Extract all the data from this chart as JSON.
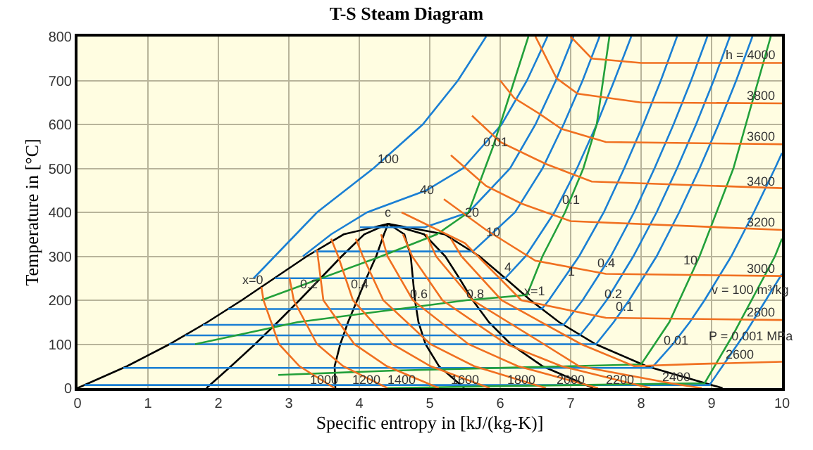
{
  "chart_data": {
    "type": "line",
    "title": "T-S Steam Diagram",
    "xlabel": "Specific entropy in [kJ/(kg-K)]",
    "ylabel": "Temperature in [°C]",
    "xlim": [
      0,
      10
    ],
    "ylim": [
      0,
      800
    ],
    "xticks": [
      0,
      1,
      2,
      3,
      4,
      5,
      6,
      7,
      8,
      9,
      10
    ],
    "yticks": [
      0,
      100,
      200,
      300,
      400,
      500,
      600,
      700,
      800
    ],
    "grid": true,
    "marker": "none",
    "line_style": "solid",
    "series": [
      {
        "color": "#000000",
        "x": [
          0,
          0.704,
          1.307,
          1.842,
          2.331,
          2.793,
          3.255,
          3.778,
          4.41,
          5.211,
          5.706,
          6.072,
          6.431,
          6.838,
          7.355,
          8.076,
          9.156
        ],
        "values": [
          0,
          50,
          100,
          150,
          200,
          250,
          300,
          350,
          374,
          350,
          300,
          250,
          200,
          150,
          100,
          50,
          0
        ]
      },
      {
        "color": "#000000",
        "x": [
          1.83,
          2.18,
          2.52,
          2.84,
          3.15,
          3.45,
          3.75,
          4.07,
          4.41
        ],
        "values": [
          0,
          50,
          100,
          150,
          200,
          250,
          300,
          350,
          374
        ]
      },
      {
        "color": "#000000",
        "x": [
          3.66,
          3.65,
          3.73,
          3.84,
          3.97,
          4.1,
          4.24,
          4.35,
          4.41
        ],
        "values": [
          0,
          50,
          100,
          150,
          200,
          250,
          300,
          350,
          374
        ]
      },
      {
        "color": "#000000",
        "x": [
          5.49,
          5.13,
          4.94,
          4.84,
          4.79,
          4.76,
          4.73,
          4.64,
          4.41
        ],
        "values": [
          0,
          50,
          100,
          150,
          200,
          250,
          300,
          350,
          374
        ]
      },
      {
        "color": "#000000",
        "x": [
          7.32,
          6.6,
          6.15,
          5.84,
          5.61,
          5.42,
          5.22,
          4.92,
          4.41
        ],
        "values": [
          0,
          50,
          100,
          150,
          200,
          250,
          300,
          350,
          374
        ]
      },
      {
        "color": "#1a7fd4",
        "x": [
          0.1,
          8.97,
          9.5,
          10
        ],
        "values": [
          7,
          7,
          130,
          260
        ]
      },
      {
        "color": "#1a7fd4",
        "x": [
          0.65,
          8.15,
          8.45,
          8.69,
          8.9,
          9.28,
          9.6,
          9.9,
          10
        ],
        "values": [
          46,
          46,
          100,
          150,
          200,
          300,
          400,
          500,
          535
        ]
      },
      {
        "color": "#1a7fd4",
        "x": [
          1.3,
          7.36,
          7.61,
          7.83,
          8.22,
          8.54,
          8.83,
          9.1,
          9.35,
          9.58
        ],
        "values": [
          100,
          100,
          150,
          200,
          300,
          400,
          500,
          600,
          700,
          800
        ]
      },
      {
        "color": "#1a7fd4",
        "x": [
          1.53,
          7.13,
          7.28,
          7.51,
          7.89,
          8.22,
          8.51,
          8.78,
          9.03,
          9.26
        ],
        "values": [
          120,
          120,
          150,
          200,
          300,
          400,
          500,
          600,
          700,
          800
        ]
      },
      {
        "color": "#1a7fd4",
        "x": [
          1.78,
          6.9,
          6.93,
          7.17,
          7.57,
          7.9,
          8.19,
          8.46,
          8.71,
          8.94
        ],
        "values": [
          144,
          144,
          150,
          200,
          300,
          400,
          500,
          600,
          700,
          800
        ]
      },
      {
        "color": "#1a7fd4",
        "x": [
          2.14,
          6.59,
          6.69,
          7.12,
          7.47,
          7.76,
          8.03,
          8.28,
          8.51
        ],
        "values": [
          180,
          180,
          200,
          300,
          400,
          500,
          600,
          700,
          800
        ]
      },
      {
        "color": "#1a7fd4",
        "x": [
          2.8,
          6.07,
          6.36,
          6.77,
          7.09,
          7.37,
          7.62,
          7.86
        ],
        "values": [
          250,
          250,
          300,
          400,
          500,
          600,
          700,
          800
        ]
      },
      {
        "color": "#1a7fd4",
        "x": [
          3.36,
          5.61,
          6.21,
          6.6,
          6.9,
          7.17,
          7.41
        ],
        "values": [
          311,
          311,
          400,
          500,
          600,
          700,
          800
        ]
      },
      {
        "color": "#1a7fd4",
        "x": [
          4.01,
          4.93,
          5.55,
          6.14,
          6.5,
          6.79,
          7.04
        ],
        "values": [
          366,
          366,
          400,
          500,
          600,
          700,
          800
        ]
      },
      {
        "color": "#1a7fd4",
        "x": [
          3.2,
          3.6,
          4.11,
          4.95,
          5.47,
          6.02,
          6.38,
          6.67
        ],
        "values": [
          300,
          350,
          400,
          450,
          500,
          600,
          700,
          800
        ]
      },
      {
        "color": "#1a7fd4",
        "x": [
          2.5,
          3.4,
          4.2,
          4.9,
          5.4,
          5.8
        ],
        "values": [
          250,
          400,
          500,
          600,
          700,
          800
        ]
      },
      {
        "color": "#22a03a",
        "x": [
          2.61,
          4.31,
          5.1,
          5.55,
          5.9,
          6.2,
          6.4
        ],
        "values": [
          200,
          300,
          350,
          400,
          550,
          700,
          800
        ]
      },
      {
        "color": "#22a03a",
        "x": [
          1.67,
          3.12,
          5.52,
          6.38,
          6.6,
          6.92,
          7.18,
          7.37,
          7.55
        ],
        "values": [
          100,
          150,
          200,
          212,
          300,
          400,
          500,
          600,
          800
        ]
      },
      {
        "color": "#22a03a",
        "x": [
          2.85,
          4.5,
          8.0,
          8.4,
          8.83,
          9.31,
          9.84
        ],
        "values": [
          30,
          40,
          54,
          150,
          300,
          500,
          800
        ]
      },
      {
        "color": "#22a03a",
        "x": [
          4.4,
          6.16,
          8.9,
          9.3,
          9.9,
          10
        ],
        "values": [
          0,
          5,
          11,
          120,
          300,
          340
        ]
      },
      {
        "color": "#f07020",
        "x": [
          7.0,
          7.3,
          8,
          10
        ],
        "values": [
          800,
          750,
          740,
          740
        ]
      },
      {
        "color": "#f07020",
        "x": [
          6.5,
          6.8,
          7.1,
          8,
          10
        ],
        "values": [
          800,
          705,
          670,
          650,
          648
        ]
      },
      {
        "color": "#f07020",
        "x": [
          6.0,
          6.2,
          6.55,
          6.87,
          7.5,
          10
        ],
        "values": [
          700,
          660,
          625,
          590,
          560,
          555
        ]
      },
      {
        "color": "#f07020",
        "x": [
          5.6,
          6.0,
          6.65,
          7.3,
          10
        ],
        "values": [
          620,
          560,
          510,
          470,
          455
        ]
      },
      {
        "color": "#f07020",
        "x": [
          5.3,
          5.8,
          6.3,
          7,
          10
        ],
        "values": [
          530,
          460,
          420,
          380,
          360
        ]
      },
      {
        "color": "#f07020",
        "x": [
          5.2,
          5.8,
          6.5,
          7.5,
          10
        ],
        "values": [
          430,
          360,
          290,
          260,
          255
        ]
      },
      {
        "color": "#f07020",
        "x": [
          4.6,
          5.5,
          6.3,
          7.5,
          10
        ],
        "values": [
          400,
          330,
          200,
          160,
          155
        ]
      },
      {
        "color": "#f07020",
        "x": [
          5.3,
          5.45,
          6.02,
          7.15,
          7.9,
          8.8,
          10
        ],
        "values": [
          340,
          300,
          200,
          100,
          50,
          55,
          60
        ]
      },
      {
        "color": "#f07020",
        "x": [
          4.95,
          5.09,
          5.61,
          6.62,
          7.12,
          8.46,
          8.86
        ],
        "values": [
          350,
          300,
          200,
          100,
          50,
          10,
          0
        ]
      },
      {
        "color": "#f07020",
        "x": [
          4.62,
          4.75,
          5.18,
          6.09,
          6.87,
          8.13
        ],
        "values": [
          350,
          300,
          200,
          100,
          50,
          0
        ]
      },
      {
        "color": "#f07020",
        "x": [
          4.31,
          4.4,
          4.76,
          5.55,
          6.25,
          7.39
        ],
        "values": [
          350,
          300,
          200,
          100,
          50,
          0
        ]
      },
      {
        "color": "#f07020",
        "x": [
          3.95,
          4.05,
          4.34,
          5.01,
          5.63,
          6.65
        ],
        "values": [
          340,
          300,
          200,
          100,
          50,
          0
        ]
      },
      {
        "color": "#f07020",
        "x": [
          3.6,
          3.7,
          3.91,
          4.47,
          5.01,
          5.85
        ],
        "values": [
          340,
          300,
          200,
          100,
          50,
          0
        ]
      },
      {
        "color": "#f07020",
        "x": [
          3.4,
          3.49,
          3.93,
          4.39,
          5.13
        ],
        "values": [
          315,
          200,
          100,
          50,
          0
        ]
      },
      {
        "color": "#f07020",
        "x": [
          3.01,
          3.07,
          3.4,
          3.77,
          4.4
        ],
        "values": [
          250,
          200,
          100,
          50,
          0
        ]
      },
      {
        "color": "#f07020",
        "x": [
          2.61,
          2.64,
          2.86,
          3.15,
          3.65
        ],
        "values": [
          230,
          200,
          100,
          50,
          0
        ]
      }
    ],
    "annotations": [
      {
        "text": "c",
        "x": 4.41,
        "y": 400
      },
      {
        "text": "x=0",
        "x": 2.48,
        "y": 248
      },
      {
        "text": "0.2",
        "x": 3.28,
        "y": 238
      },
      {
        "text": "0.4",
        "x": 4.0,
        "y": 238
      },
      {
        "text": "0.6",
        "x": 4.84,
        "y": 216
      },
      {
        "text": "0.8",
        "x": 5.64,
        "y": 216
      },
      {
        "text": "x=1",
        "x": 6.48,
        "y": 222
      },
      {
        "text": "100",
        "x": 4.4,
        "y": 523
      },
      {
        "text": "40",
        "x": 4.95,
        "y": 450
      },
      {
        "text": "20",
        "x": 5.6,
        "y": 400
      },
      {
        "text": "10",
        "x": 5.9,
        "y": 355
      },
      {
        "text": "4",
        "x": 6.1,
        "y": 275
      },
      {
        "text": "1",
        "x": 7.0,
        "y": 265
      },
      {
        "text": "0.4",
        "x": 7.5,
        "y": 285
      },
      {
        "text": "0.2",
        "x": 7.6,
        "y": 215
      },
      {
        "text": "0.1",
        "x": 7.76,
        "y": 185
      },
      {
        "text": "0.01",
        "x": 8.5,
        "y": 110
      },
      {
        "text": "P = 0.001 MPa",
        "x": 9.55,
        "y": 120
      },
      {
        "text": "0.01",
        "x": 5.94,
        "y": 560
      },
      {
        "text": "0.1",
        "x": 7.0,
        "y": 430
      },
      {
        "text": "10",
        "x": 8.7,
        "y": 290
      },
      {
        "text": "v = 100 m³/kg",
        "x": 9.55,
        "y": 225
      },
      {
        "text": "h = 4000",
        "x": 9.55,
        "y": 757
      },
      {
        "text": "3800",
        "x": 9.7,
        "y": 665
      },
      {
        "text": "3600",
        "x": 9.7,
        "y": 572
      },
      {
        "text": "3400",
        "x": 9.7,
        "y": 472
      },
      {
        "text": "3200",
        "x": 9.7,
        "y": 377
      },
      {
        "text": "3000",
        "x": 9.7,
        "y": 272
      },
      {
        "text": "2800",
        "x": 9.7,
        "y": 172
      },
      {
        "text": "2600",
        "x": 9.4,
        "y": 77
      },
      {
        "text": "2400",
        "x": 8.5,
        "y": 25
      },
      {
        "text": "2200",
        "x": 7.7,
        "y": 20
      },
      {
        "text": "2000",
        "x": 7.0,
        "y": 20
      },
      {
        "text": "1800",
        "x": 6.3,
        "y": 20
      },
      {
        "text": "1600",
        "x": 5.5,
        "y": 20
      },
      {
        "text": "1400",
        "x": 4.6,
        "y": 20
      },
      {
        "text": "1200",
        "x": 4.1,
        "y": 20
      },
      {
        "text": "1000",
        "x": 3.5,
        "y": 20
      }
    ]
  }
}
